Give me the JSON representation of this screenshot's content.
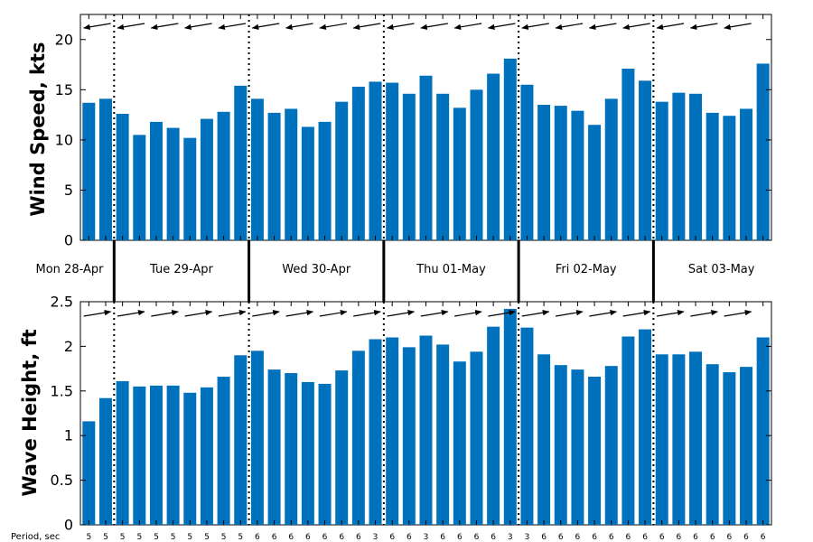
{
  "chart_data": [
    {
      "type": "bar",
      "ylabel": "Wind Speed, kts",
      "ylim": [
        0,
        22.5
      ],
      "yticks": [
        0,
        5,
        10,
        15,
        20
      ],
      "color": "#0072BD",
      "values": [
        13.7,
        14.1,
        12.6,
        10.5,
        11.8,
        11.2,
        10.2,
        12.1,
        12.8,
        15.4,
        14.1,
        12.7,
        13.1,
        11.3,
        11.8,
        13.8,
        15.3,
        15.8,
        15.7,
        14.6,
        16.4,
        14.6,
        13.2,
        15.0,
        16.6,
        18.1,
        15.5,
        13.5,
        13.4,
        12.9,
        11.5,
        14.1,
        17.1,
        15.9,
        13.8,
        14.7,
        14.6,
        12.7,
        12.4,
        13.1,
        17.6
      ],
      "direction_arrows": "pointing left (easterly wind)"
    },
    {
      "type": "bar",
      "ylabel": "Wave Height, ft",
      "ylim": [
        0,
        2.5
      ],
      "yticks": [
        "0",
        "0.5",
        "1",
        "1.5",
        "2",
        "2.5"
      ],
      "color": "#0072BD",
      "values": [
        1.16,
        1.42,
        1.61,
        1.55,
        1.56,
        1.56,
        1.48,
        1.54,
        1.66,
        1.9,
        1.95,
        1.74,
        1.7,
        1.6,
        1.58,
        1.73,
        1.95,
        2.08,
        2.1,
        1.99,
        2.12,
        2.02,
        1.83,
        1.94,
        2.22,
        2.42,
        2.21,
        1.91,
        1.79,
        1.74,
        1.66,
        1.78,
        2.11,
        2.19,
        1.91,
        1.91,
        1.94,
        1.8,
        1.71,
        1.77,
        2.1
      ],
      "direction_arrows": "pointing right"
    }
  ],
  "days": [
    "Mon 28-Apr",
    "Tue 29-Apr",
    "Wed 30-Apr",
    "Thu 01-May",
    "Fri 02-May",
    "Sat 03-May"
  ],
  "day_boundaries_after_bar": [
    2,
    10,
    18,
    26,
    34
  ],
  "period_label": "Period, sec",
  "periods": [
    5,
    5,
    5,
    5,
    5,
    5,
    5,
    5,
    5,
    5,
    6,
    6,
    6,
    6,
    6,
    6,
    6,
    3,
    6,
    6,
    3,
    6,
    6,
    6,
    6,
    3,
    3,
    6,
    6,
    6,
    6,
    6,
    6,
    6,
    6,
    6,
    6,
    6,
    6,
    6,
    6
  ]
}
